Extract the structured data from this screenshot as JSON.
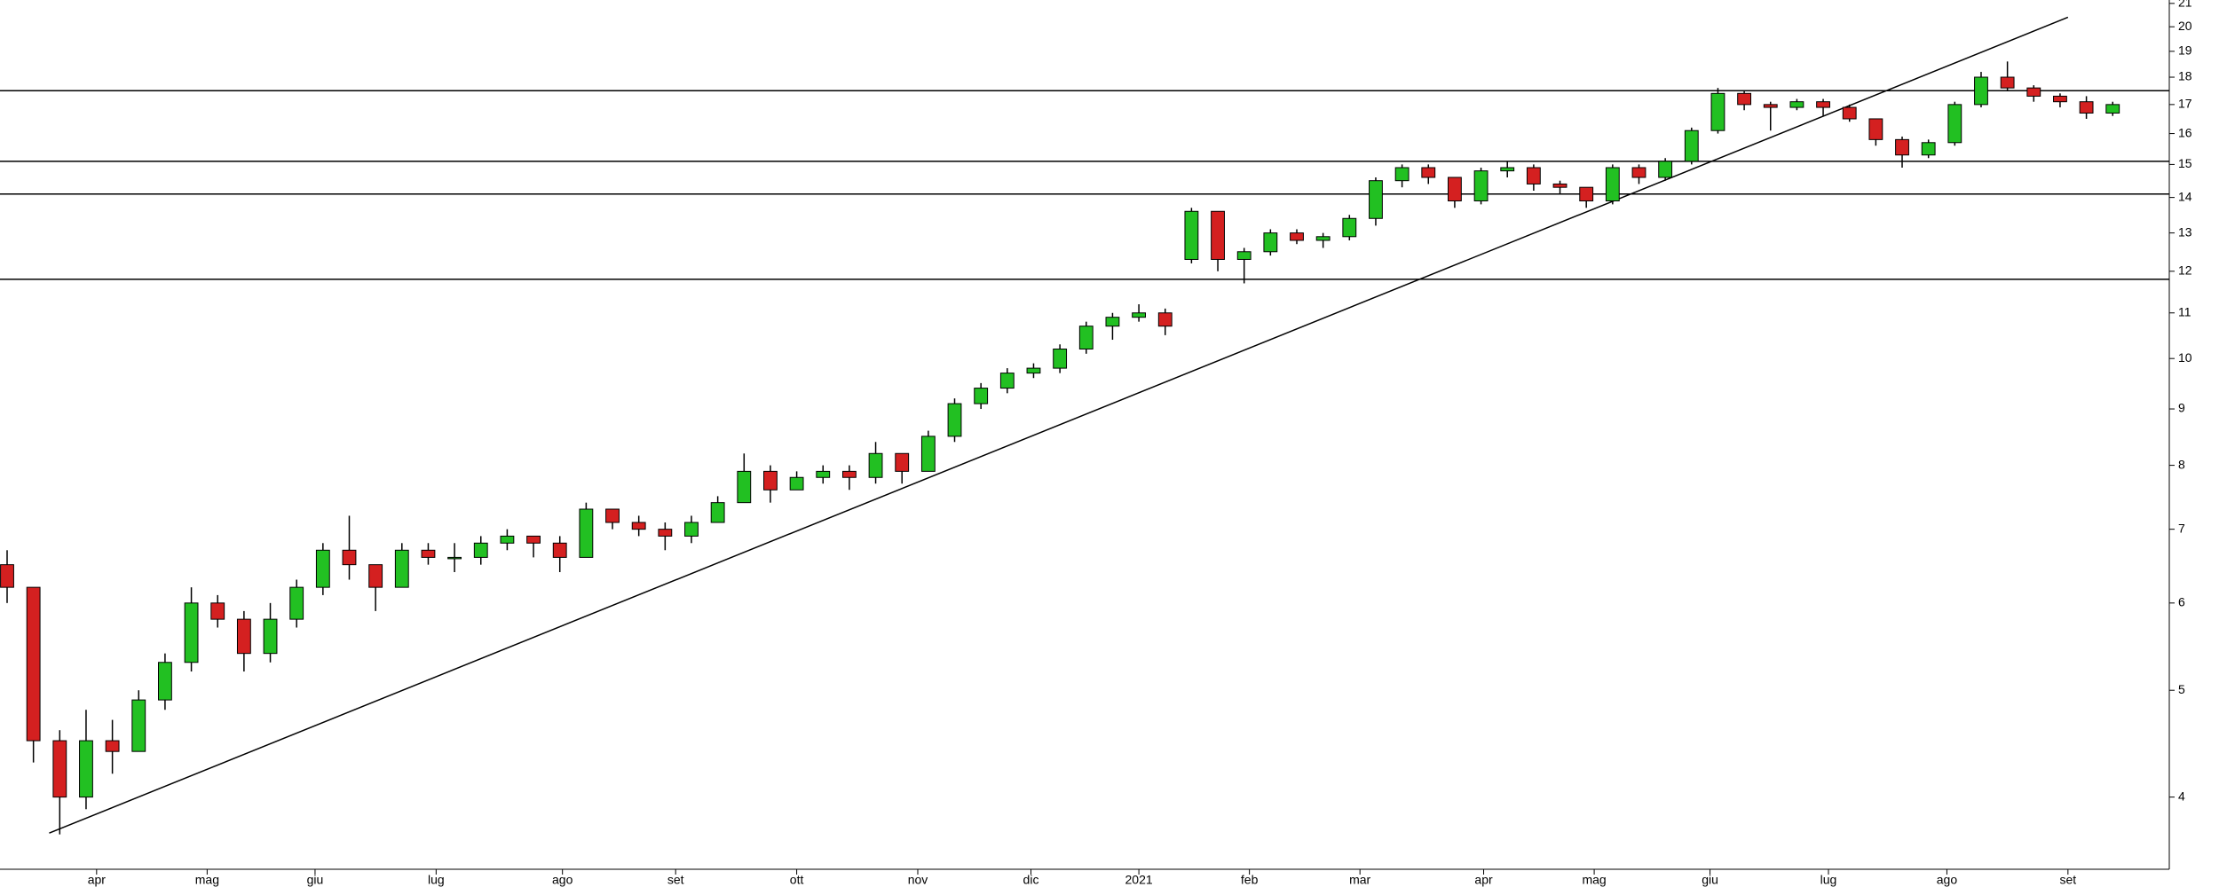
{
  "chart_data": {
    "type": "candlestick",
    "log_scale": true,
    "up_color": "#22c022",
    "down_color": "#d42020",
    "line_color": "#000000",
    "categories": [
      null,
      null,
      null,
      null,
      null,
      null,
      null,
      null,
      null,
      null,
      null,
      null,
      null,
      null,
      null,
      null,
      null,
      null,
      null,
      null,
      null,
      null,
      null,
      null,
      null,
      null,
      null,
      null,
      null,
      null,
      null,
      null,
      null,
      null,
      null,
      null,
      null,
      null,
      null,
      null,
      null,
      null,
      null,
      null,
      null,
      null,
      null,
      null,
      null,
      null,
      null,
      null,
      null,
      null,
      null,
      null,
      null,
      null,
      null,
      null,
      null,
      null,
      null,
      null,
      null,
      null,
      null,
      null,
      null,
      null,
      null,
      null,
      null,
      null,
      null,
      null,
      null,
      null,
      null,
      null,
      null
    ],
    "open": [
      6.5,
      6.2,
      4.5,
      4.0,
      4.5,
      4.4,
      4.9,
      5.3,
      6.0,
      5.8,
      5.4,
      5.8,
      6.2,
      6.7,
      6.5,
      6.2,
      6.7,
      6.6,
      6.6,
      6.8,
      6.9,
      6.8,
      6.6,
      7.3,
      7.1,
      7.0,
      6.9,
      7.1,
      7.4,
      7.9,
      7.6,
      7.8,
      7.9,
      7.8,
      8.2,
      7.9,
      8.5,
      9.1,
      9.4,
      9.7,
      9.8,
      10.2,
      10.7,
      10.9,
      11.0,
      12.3,
      13.6,
      12.3,
      12.5,
      13.0,
      12.8,
      12.9,
      13.4,
      14.5,
      14.9,
      14.6,
      13.9,
      14.8,
      14.9,
      14.4,
      14.3,
      13.9,
      14.9,
      14.6,
      15.1,
      16.1,
      17.4,
      17.0,
      16.9,
      17.1,
      16.9,
      16.5,
      15.8,
      15.3,
      15.7,
      17.0,
      18.0,
      17.6,
      17.3,
      17.1,
      16.7
    ],
    "high": [
      6.7,
      6.2,
      4.6,
      4.8,
      4.7,
      5.0,
      5.4,
      6.2,
      6.1,
      5.9,
      6.0,
      6.3,
      6.8,
      7.2,
      6.5,
      6.8,
      6.8,
      6.8,
      6.9,
      7.0,
      6.9,
      6.9,
      7.4,
      7.3,
      7.2,
      7.1,
      7.2,
      7.5,
      8.2,
      8.0,
      7.9,
      8.0,
      8.0,
      8.4,
      8.2,
      8.6,
      9.2,
      9.5,
      9.8,
      9.9,
      10.3,
      10.8,
      11.0,
      11.2,
      11.1,
      13.7,
      13.6,
      12.6,
      13.1,
      13.1,
      13.0,
      13.5,
      14.6,
      15.0,
      15.0,
      14.6,
      14.9,
      15.1,
      15.0,
      14.5,
      14.3,
      15.0,
      15.0,
      15.2,
      16.2,
      17.6,
      17.5,
      17.1,
      17.2,
      17.2,
      17.0,
      16.5,
      15.9,
      15.8,
      17.1,
      18.2,
      18.6,
      17.7,
      17.4,
      17.3,
      17.1
    ],
    "low": [
      6.0,
      4.3,
      3.7,
      3.9,
      4.2,
      4.4,
      4.8,
      5.2,
      5.7,
      5.2,
      5.3,
      5.7,
      6.1,
      6.3,
      5.9,
      6.2,
      6.5,
      6.4,
      6.5,
      6.7,
      6.6,
      6.4,
      6.6,
      7.0,
      6.9,
      6.7,
      6.8,
      7.1,
      7.4,
      7.4,
      7.6,
      7.7,
      7.6,
      7.7,
      7.7,
      7.9,
      8.4,
      9.0,
      9.3,
      9.6,
      9.7,
      10.1,
      10.4,
      10.8,
      10.5,
      12.2,
      12.0,
      11.7,
      12.4,
      12.7,
      12.6,
      12.8,
      13.2,
      14.3,
      14.4,
      13.7,
      13.8,
      14.6,
      14.2,
      14.1,
      13.7,
      13.8,
      14.4,
      14.5,
      15.0,
      16.0,
      16.8,
      16.1,
      16.8,
      16.6,
      16.4,
      15.6,
      14.9,
      15.2,
      15.6,
      16.9,
      17.5,
      17.1,
      16.9,
      16.5,
      16.6
    ],
    "close": [
      6.2,
      4.5,
      4.0,
      4.5,
      4.4,
      4.9,
      5.3,
      6.0,
      5.8,
      5.4,
      5.8,
      6.2,
      6.7,
      6.5,
      6.2,
      6.7,
      6.6,
      6.6,
      6.8,
      6.9,
      6.8,
      6.6,
      7.3,
      7.1,
      7.0,
      6.9,
      7.1,
      7.4,
      7.9,
      7.6,
      7.8,
      7.9,
      7.8,
      8.2,
      7.9,
      8.5,
      9.1,
      9.4,
      9.7,
      9.8,
      10.2,
      10.7,
      10.9,
      11.0,
      10.7,
      13.6,
      12.3,
      12.5,
      13.0,
      12.8,
      12.9,
      13.4,
      14.5,
      14.9,
      14.6,
      13.9,
      14.8,
      14.9,
      14.4,
      14.3,
      13.9,
      14.9,
      14.6,
      15.1,
      16.1,
      17.4,
      17.0,
      16.9,
      17.1,
      16.9,
      16.5,
      15.8,
      15.3,
      15.7,
      17.0,
      18.0,
      17.6,
      17.3,
      17.1,
      16.7,
      17.0
    ],
    "hlines": [
      17.5,
      15.1,
      14.1,
      11.8
    ],
    "trendline": {
      "x": [
        1.6,
        78.3
      ],
      "y": [
        3.71,
        20.4
      ]
    },
    "xlim": [
      -0.27,
      82.15
    ],
    "xticks": [
      {
        "value": 3.4,
        "label": "apr"
      },
      {
        "value": 7.6,
        "label": "mag"
      },
      {
        "value": 11.7,
        "label": "giu"
      },
      {
        "value": 16.3,
        "label": "lug"
      },
      {
        "value": 21.1,
        "label": "ago"
      },
      {
        "value": 25.4,
        "label": "set"
      },
      {
        "value": 30.0,
        "label": "ott"
      },
      {
        "value": 34.6,
        "label": "nov"
      },
      {
        "value": 38.9,
        "label": "dic"
      },
      {
        "value": 43.0,
        "label": "2021"
      },
      {
        "value": 47.2,
        "label": "feb"
      },
      {
        "value": 51.4,
        "label": "mar"
      },
      {
        "value": 56.1,
        "label": "apr"
      },
      {
        "value": 60.3,
        "label": "mag"
      },
      {
        "value": 64.7,
        "label": "giu"
      },
      {
        "value": 69.2,
        "label": "lug"
      },
      {
        "value": 73.7,
        "label": "ago"
      },
      {
        "value": 78.3,
        "label": "set"
      }
    ],
    "ylim": [
      3.44,
      21.15
    ],
    "yticks": [
      4,
      5,
      6,
      7,
      8,
      9,
      10,
      11,
      12,
      13,
      14,
      15,
      16,
      17,
      18,
      19,
      20,
      21
    ]
  }
}
